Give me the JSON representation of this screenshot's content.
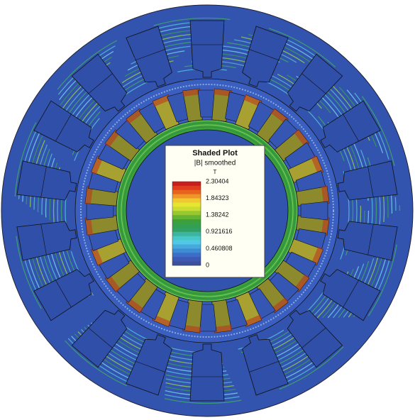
{
  "legend": {
    "title": "Shaded Plot",
    "subtitle": "|B| smoothed",
    "unit": "T",
    "ticks": [
      2.30404,
      1.84323,
      1.38242,
      0.921616,
      0.460808,
      0
    ],
    "colors": [
      "#c81e1e",
      "#e03c1e",
      "#e8641e",
      "#f09628",
      "#f0c832",
      "#e6e632",
      "#c8dc32",
      "#96c832",
      "#64b432",
      "#3ca03c",
      "#32a050",
      "#32a064",
      "#3cb4a0",
      "#46c8c8",
      "#50c8e6",
      "#46aadc",
      "#3c8cd2",
      "#3c6ec8",
      "#3c5ab4",
      "#3c50a0"
    ]
  }
}
